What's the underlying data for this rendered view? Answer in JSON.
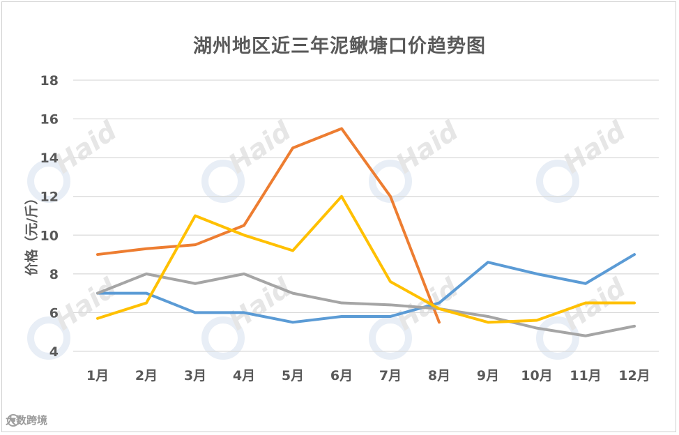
{
  "chart_data": {
    "type": "line",
    "title": "湖州地区近三年泥鳅塘口价趋势图",
    "xlabel": "",
    "ylabel": "价格（元/斤）",
    "categories": [
      "1月",
      "2月",
      "3月",
      "4月",
      "5月",
      "6月",
      "7月",
      "8月",
      "9月",
      "10月",
      "11月",
      "12月"
    ],
    "ylim": [
      4,
      18
    ],
    "yticks": [
      4,
      6,
      8,
      10,
      12,
      14,
      16,
      18
    ],
    "grid": true,
    "series": [
      {
        "color": "#5b9bd5",
        "values": [
          7.0,
          7.0,
          6.0,
          6.0,
          5.5,
          5.8,
          5.8,
          6.5,
          8.6,
          8.0,
          7.5,
          9.0
        ]
      },
      {
        "color": "#ed7d31",
        "values": [
          9.0,
          9.3,
          9.5,
          10.5,
          14.5,
          15.5,
          12.0,
          5.5,
          null,
          null,
          null,
          null
        ]
      },
      {
        "color": "#a5a5a5",
        "values": [
          7.0,
          8.0,
          7.5,
          8.0,
          7.0,
          6.5,
          6.4,
          6.2,
          5.8,
          5.2,
          4.8,
          5.3
        ]
      },
      {
        "color": "#ffc000",
        "values": [
          5.7,
          6.5,
          11.0,
          10.0,
          9.2,
          12.0,
          7.6,
          6.2,
          5.5,
          5.6,
          6.5,
          6.5
        ]
      }
    ]
  },
  "watermark": {
    "text": "Haid"
  },
  "footer": {
    "text": "大数跨境"
  }
}
